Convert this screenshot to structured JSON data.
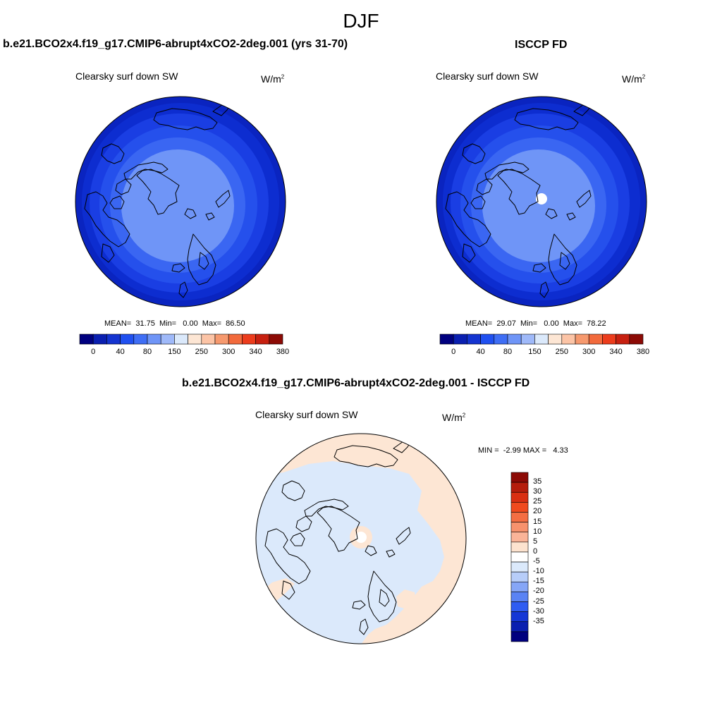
{
  "figure_title": "DJF",
  "panels": [
    {
      "case_title": "b.e21.BCO2x4.f19_g17.CMIP6-abrupt4xCO2-2deg.001 (yrs 31-70)",
      "variable": "Clearsky surf down SW",
      "units": "W/m",
      "units_sup": "2",
      "stats": {
        "mean": "31.75",
        "min": "0.00",
        "max": "86.50",
        "text": "MEAN=  31.75  Min=   0.00  Max=  86.50"
      }
    },
    {
      "case_title": "ISCCP FD",
      "variable": "Clearsky surf down SW",
      "units": "W/m",
      "units_sup": "2",
      "stats": {
        "mean": "29.07",
        "min": "0.00",
        "max": "78.22",
        "text": "MEAN=  29.07  Min=   0.00  Max=  78.22"
      }
    },
    {
      "case_title": "b.e21.BCO2x4.f19_g17.CMIP6-abrupt4xCO2-2deg.001 - ISCCP FD",
      "variable": "Clearsky surf down SW",
      "units": "W/m",
      "units_sup": "2",
      "stats": {
        "min": "-2.99",
        "max": "4.33",
        "text": "MIN =  -2.99 MAX =   4.33"
      }
    }
  ],
  "abs_colorbar": {
    "tick_labels": [
      "0",
      "40",
      "80",
      "150",
      "250",
      "300",
      "340",
      "380"
    ],
    "colors": [
      "#00007f",
      "#0a1fb0",
      "#1434d0",
      "#2050f0",
      "#3f6ef5",
      "#6f95f7",
      "#9fb9f9",
      "#dbe9fb",
      "#fde6d4",
      "#fcc4a6",
      "#f6996e",
      "#f26a3c",
      "#ec3c1c",
      "#c72010",
      "#8c0a05"
    ]
  },
  "diff_colorbar": {
    "labels": [
      "35",
      "30",
      "25",
      "20",
      "15",
      "10",
      "5",
      "0",
      "-5",
      "-10",
      "-15",
      "-20",
      "-25",
      "-30",
      "-35"
    ],
    "colors_top_to_bottom": [
      "#8c0a05",
      "#b51d0c",
      "#d92f12",
      "#f04a1e",
      "#f46e43",
      "#f7926d",
      "#fab498",
      "#fde3cf",
      "#ffffff",
      "#dbe9fb",
      "#b7cdf9",
      "#86a6f7",
      "#5a83f4",
      "#2f5cf2",
      "#1537d6",
      "#0a1fb0",
      "#00007f"
    ]
  },
  "map_colors": {
    "abs_bands": [
      "#0a24c0",
      "#0d2dd0",
      "#1a3ee3",
      "#2550ec",
      "#3a66f2",
      "#6f95f7"
    ],
    "diff_positive": "#fde6d4",
    "diff_negative": "#dbe9fb"
  },
  "chart_data": [
    {
      "type": "heatmap",
      "title": "Clearsky surf down SW",
      "subtitle": "b.e21.BCO2x4.f19_g17.CMIP6-abrupt4xCO2-2deg.001 (yrs 31-70)",
      "units": "W/m2",
      "projection": "north polar stereographic",
      "season": "DJF",
      "mean": 31.75,
      "min": 0.0,
      "max": 86.5,
      "contour_levels": [
        0,
        20,
        40,
        60,
        80,
        100,
        150,
        200,
        250,
        275,
        300,
        320,
        340,
        360,
        380
      ]
    },
    {
      "type": "heatmap",
      "title": "Clearsky surf down SW",
      "subtitle": "ISCCP FD",
      "units": "W/m2",
      "projection": "north polar stereographic",
      "season": "DJF",
      "mean": 29.07,
      "min": 0.0,
      "max": 78.22,
      "contour_levels": [
        0,
        20,
        40,
        60,
        80,
        100,
        150,
        200,
        250,
        275,
        300,
        320,
        340,
        360,
        380
      ]
    },
    {
      "type": "heatmap",
      "title": "Clearsky surf down SW",
      "subtitle": "b.e21.BCO2x4.f19_g17.CMIP6-abrupt4xCO2-2deg.001 - ISCCP FD",
      "units": "W/m2",
      "projection": "north polar stereographic",
      "season": "DJF",
      "min": -2.99,
      "max": 4.33,
      "contour_levels": [
        -35,
        -30,
        -25,
        -20,
        -15,
        -10,
        -5,
        0,
        5,
        10,
        15,
        20,
        25,
        30,
        35
      ]
    }
  ]
}
